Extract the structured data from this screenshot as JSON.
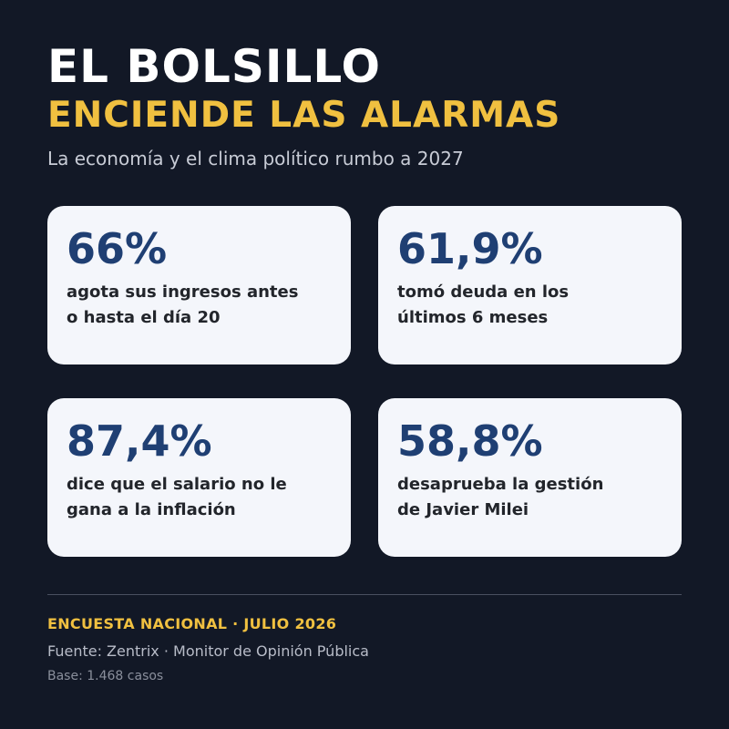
{
  "header": {
    "title": "EL BOLSILLO",
    "highlight": "ENCIENDE LAS ALARMAS",
    "subtitle": "La economía y el clima político rumbo a 2027"
  },
  "cards": [
    {
      "value": "66%",
      "label": [
        "agota sus ingresos antes",
        "o hasta el día 20"
      ]
    },
    {
      "value": "61,9%",
      "label": [
        "tomó deuda en los",
        "últimos 6 meses"
      ]
    },
    {
      "value": "87,4%",
      "label": [
        "dice que el salario no le",
        "gana a la inflación"
      ]
    },
    {
      "value": "58,8%",
      "label": [
        "desaprueba la gestión",
        "de Javier Milei"
      ]
    }
  ],
  "footer": {
    "survey": "ENCUESTA NACIONAL · JULIO 2026",
    "source": "Fuente: Zentrix · Monitor de Opinión Pública",
    "base": "Base: 1.468 casos"
  }
}
